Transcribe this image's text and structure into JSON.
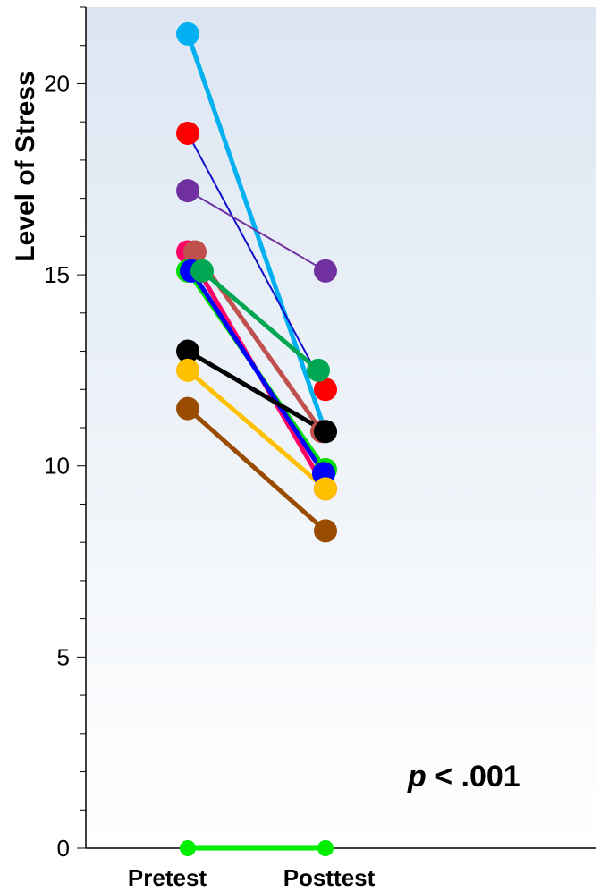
{
  "chart_data": {
    "type": "line",
    "title": "",
    "ylabel": "Level of Stress",
    "xlabel": "",
    "categories": [
      "Pretest",
      "Posttest"
    ],
    "ylim": [
      0,
      22
    ],
    "yticks": [
      0,
      5,
      10,
      15,
      20
    ],
    "grid": false,
    "annotation": {
      "italic_part": "p",
      "rest": " < .001"
    },
    "series": [
      {
        "color": "#00b0f0",
        "values": [
          21.3,
          10.9
        ],
        "width": "thick"
      },
      {
        "color": "#ff0000",
        "values": [
          18.7,
          12.0
        ],
        "width": "thin",
        "line_color": "#1010cc"
      },
      {
        "color": "#7030a0",
        "values": [
          17.2,
          15.1
        ],
        "width": "thin"
      },
      {
        "color": "#ff0066",
        "values": [
          15.6,
          9.4
        ],
        "width": "thick"
      },
      {
        "color": "#c0504d",
        "values": [
          15.6,
          10.9
        ],
        "width": "thick",
        "x_offset": 8
      },
      {
        "color": "#00dd00",
        "values": [
          15.1,
          9.9
        ],
        "width": "thick"
      },
      {
        "color": "#0000ff",
        "values": [
          15.1,
          9.8
        ],
        "width": "thick",
        "x_offset": 4
      },
      {
        "color": "#00a651",
        "values": [
          15.1,
          12.5
        ],
        "width": "thick",
        "x_offset": 16
      },
      {
        "color": "#000000",
        "values": [
          13.0,
          10.9
        ],
        "width": "thick"
      },
      {
        "color": "#ffc000",
        "values": [
          12.5,
          9.4
        ],
        "width": "thick"
      },
      {
        "color": "#994c00",
        "values": [
          11.5,
          8.3
        ],
        "width": "thick"
      },
      {
        "color": "#00ee00",
        "values": [
          0,
          0
        ],
        "width": "thick"
      }
    ]
  }
}
